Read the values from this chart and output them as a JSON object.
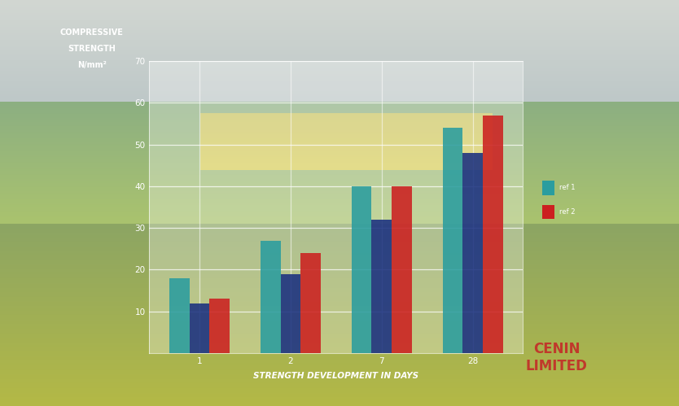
{
  "days_labels": [
    "1",
    "2",
    "7",
    "28"
  ],
  "series": {
    "teal": [
      18,
      27,
      40,
      54
    ],
    "navy": [
      12,
      19,
      32,
      48
    ],
    "red": [
      13,
      24,
      40,
      57
    ]
  },
  "colors": {
    "teal": "#2a9d9f",
    "navy": "#1a3080",
    "red": "#cc2020"
  },
  "ylabel_lines": [
    "COMPRESSIVE",
    "STRENGTH",
    "N/mm²"
  ],
  "xlabel": "STRENGTH DEVELOPMENT IN DAYS",
  "ylim": [
    0,
    70
  ],
  "yticks": [
    10,
    20,
    30,
    40,
    50,
    60,
    70
  ],
  "bar_width": 0.22,
  "legend_labels": [
    "ref 1",
    "ref 2"
  ],
  "text_color": "white",
  "label_fontsize": 7,
  "tick_fontsize": 7.5,
  "xlabel_fontsize": 7.5
}
